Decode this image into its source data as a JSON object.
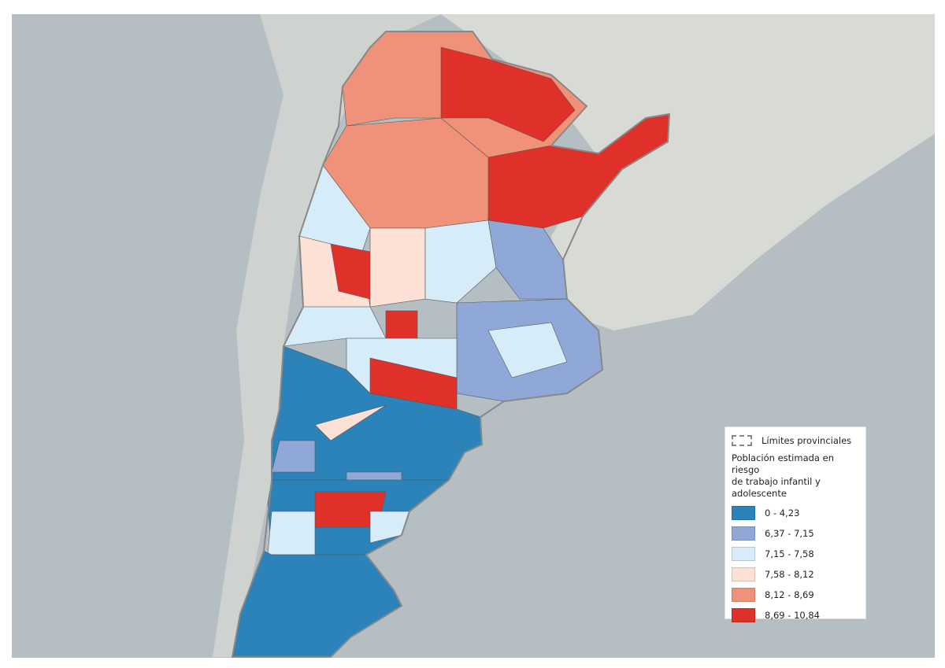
{
  "legend": {
    "boundary_label": "Límites provinciales",
    "title_line1": "Población estimada en riesgo",
    "title_line2": "de trabajo infantil y adolescente",
    "classes": [
      {
        "label": "0 - 4,23",
        "color": "#2b83ba"
      },
      {
        "label": "6,37 - 7,15",
        "color": "#8fa8d8"
      },
      {
        "label": "7,15 - 7,58",
        "color": "#d6ecf8"
      },
      {
        "label": "7,58 - 8,12",
        "color": "#fde0d6"
      },
      {
        "label": "8,12 - 8,69",
        "color": "#f0927a"
      },
      {
        "label": "8,69 - 10,84",
        "color": "#e0302a"
      }
    ]
  }
}
